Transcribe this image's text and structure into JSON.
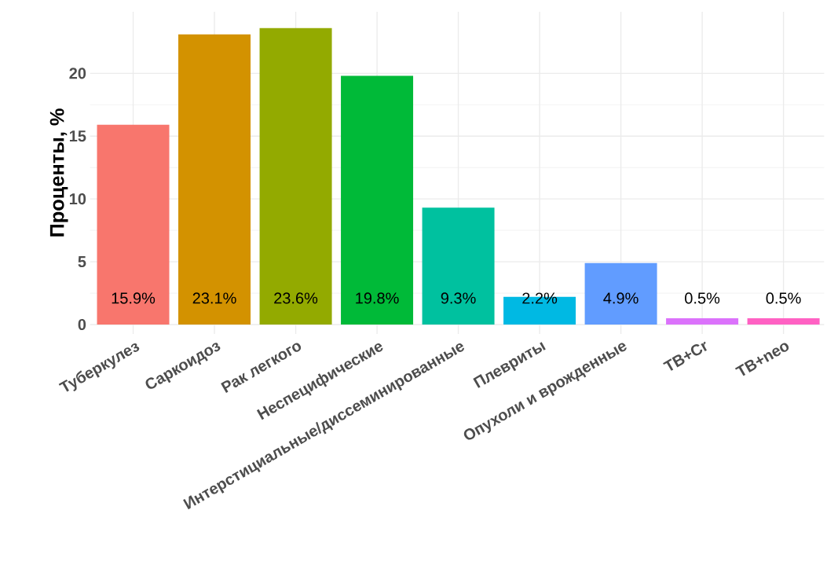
{
  "chart_data": {
    "type": "bar",
    "ylabel": "Проценты, %",
    "categories": [
      "Туберкулез",
      "Саркоидоз",
      "Рак легкого",
      "Неспецифические",
      "Интерстициальные/диссеминированные",
      "Плевриты",
      "Опухоли и врожденные",
      "TB+Cr",
      "TB+neo"
    ],
    "values": [
      15.9,
      23.1,
      23.6,
      19.8,
      9.3,
      2.2,
      4.9,
      0.5,
      0.5
    ],
    "value_labels": [
      "15.9%",
      "23.1%",
      "23.6%",
      "19.8%",
      "9.3%",
      "2.2%",
      "4.9%",
      "0.5%",
      "0.5%"
    ],
    "colors": [
      "#f8766d",
      "#d39200",
      "#93aa00",
      "#00ba38",
      "#00c19f",
      "#00b9e3",
      "#619cff",
      "#db72fb",
      "#ff61c3"
    ],
    "ylim": [
      -0.75,
      24.9
    ],
    "yticks": [
      0,
      5,
      10,
      15,
      20
    ],
    "grid": true
  }
}
